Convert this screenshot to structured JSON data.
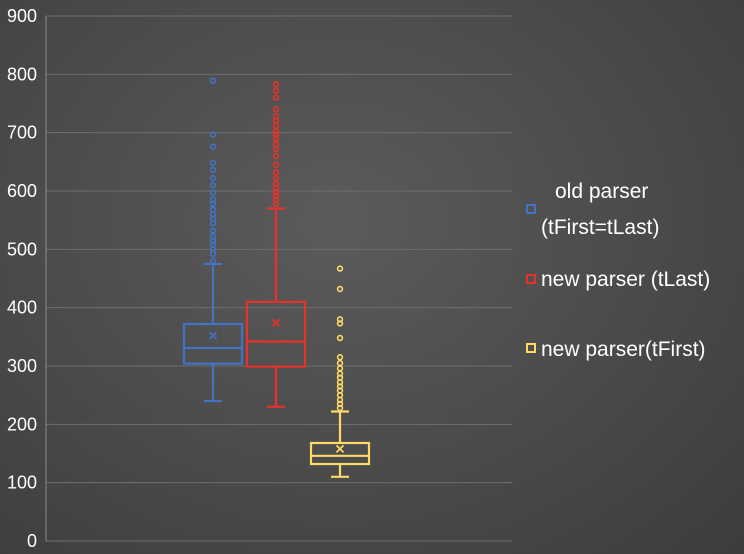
{
  "chart_data": {
    "type": "box",
    "title": "",
    "xlabel": "",
    "ylabel": "",
    "ylim": [
      0,
      900
    ],
    "yticks": [
      0,
      100,
      200,
      300,
      400,
      500,
      600,
      700,
      800,
      900
    ],
    "grid": true,
    "legend_position": "right",
    "series": [
      {
        "name": "old parser (tFirst=tLast)",
        "legend_lines": [
          "old parser",
          "(tFirst=tLast)"
        ],
        "color": "#4472c4",
        "whisker_low": 240,
        "q1": 304,
        "median": 331,
        "q3": 372,
        "whisker_high": 475,
        "mean": 352,
        "outliers": [
          480,
          492,
          500,
          508,
          515,
          522,
          532,
          545,
          553,
          560,
          568,
          578,
          585,
          597,
          610,
          622,
          636,
          648,
          676,
          697,
          789
        ]
      },
      {
        "name": "new parser (tLast)",
        "legend_lines": [
          "new parser (tLast)"
        ],
        "color": "#e8312a",
        "whisker_low": 230,
        "q1": 299,
        "median": 342,
        "q3": 410,
        "whisker_high": 570,
        "mean": 374,
        "outliers": [
          578,
          585,
          592,
          598,
          605,
          612,
          622,
          632,
          645,
          660,
          672,
          680,
          690,
          697,
          703,
          712,
          720,
          728,
          740,
          760,
          772,
          783
        ]
      },
      {
        "name": "new parser(tFirst)",
        "legend_lines": [
          "new parser(tFirst)"
        ],
        "color": "#ffd966",
        "whisker_low": 110,
        "q1": 132,
        "median": 146,
        "q3": 168,
        "whisker_high": 222,
        "mean": 158,
        "outliers": [
          228,
          235,
          242,
          250,
          258,
          265,
          272,
          280,
          287,
          296,
          305,
          315,
          348,
          373,
          380,
          432,
          467
        ]
      }
    ]
  }
}
